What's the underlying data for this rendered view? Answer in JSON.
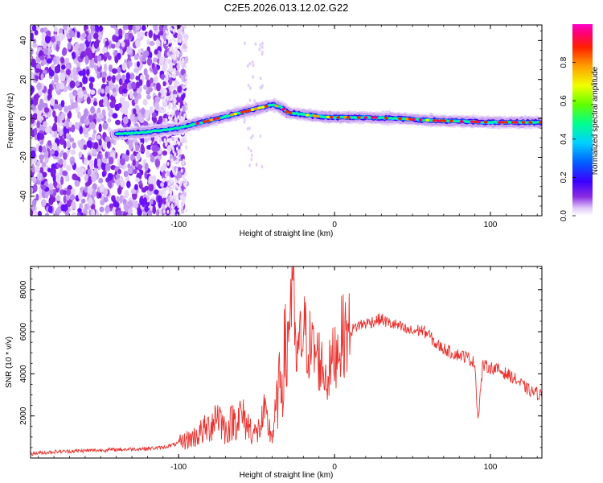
{
  "title": "C2E5.2026.013.12.02.G22",
  "chart_data": [
    {
      "type": "heatmap",
      "xlabel": "Height of straight line (km)",
      "ylabel": "Frequency (Hz)",
      "xlim": [
        -195,
        133
      ],
      "ylim": [
        -50,
        48
      ],
      "xticks": [
        -100,
        0,
        100
      ],
      "xtick_labels": [
        "-100",
        "0",
        "100"
      ],
      "yticks": [
        -40,
        -20,
        0,
        20,
        40
      ],
      "ytick_labels": [
        "-40",
        "-20",
        "0",
        "20",
        "40"
      ],
      "colorbar": {
        "label": "Normalized spectral amplitude",
        "range": [
          0,
          1
        ],
        "ticks": [
          0.0,
          0.2,
          0.4,
          0.6,
          0.8
        ],
        "tick_labels": [
          "0.0",
          "0.2",
          "0.4",
          "0.6",
          "0.8"
        ],
        "colormap": [
          "#ffffff",
          "#e0c8f8",
          "#8a2be2",
          "#3a00ff",
          "#0060ff",
          "#00d0ff",
          "#00ff90",
          "#60ff00",
          "#f0ff00",
          "#ffa000",
          "#ff2000",
          "#ff0070",
          "#ff00c8"
        ]
      },
      "ridge": {
        "x": [
          -140,
          -120,
          -100,
          -80,
          -60,
          -50,
          -40,
          -35,
          -30,
          -20,
          -10,
          0,
          20,
          40,
          60,
          80,
          100,
          120,
          133
        ],
        "freq": [
          -8,
          -7,
          -5,
          -1,
          3,
          5,
          7,
          6,
          3,
          2,
          1,
          0.5,
          0.5,
          0,
          -1,
          -1.5,
          -2,
          -2,
          -2
        ]
      }
    },
    {
      "type": "line",
      "xlabel": "Height of straight line (km)",
      "ylabel": "SNR (10 * v/v)",
      "xlim": [
        -195,
        133
      ],
      "ylim": [
        0,
        9100
      ],
      "xticks": [
        -100,
        0,
        100
      ],
      "xtick_labels": [
        "-100",
        "0",
        "100"
      ],
      "yticks": [
        2000,
        4000,
        6000,
        8000
      ],
      "ytick_labels": [
        "2000",
        "4000",
        "6000",
        "8000"
      ],
      "line_color": "#e8322e",
      "series": [
        {
          "name": "SNR",
          "x": [
            -195,
            -180,
            -160,
            -140,
            -120,
            -110,
            -100,
            -90,
            -80,
            -75,
            -70,
            -65,
            -60,
            -55,
            -50,
            -45,
            -40,
            -35,
            -30,
            -27,
            -25,
            -20,
            -15,
            -10,
            -5,
            0,
            5,
            10,
            15,
            20,
            25,
            30,
            35,
            40,
            45,
            50,
            55,
            60,
            65,
            70,
            75,
            80,
            85,
            90,
            92,
            95,
            100,
            105,
            110,
            115,
            120,
            125,
            133
          ],
          "y": [
            200,
            300,
            350,
            400,
            450,
            500,
            700,
            1000,
            1500,
            2200,
            1300,
            1800,
            2000,
            1500,
            1100,
            2000,
            1000,
            3500,
            5500,
            9000,
            4500,
            6000,
            5200,
            4700,
            3800,
            4900,
            5800,
            6000,
            6300,
            6400,
            6500,
            6600,
            6400,
            6300,
            6100,
            6000,
            6100,
            5900,
            5400,
            5200,
            5000,
            4900,
            4800,
            4500,
            1800,
            4400,
            4300,
            4200,
            4000,
            3800,
            3500,
            3200,
            3000
          ]
        }
      ]
    }
  ]
}
